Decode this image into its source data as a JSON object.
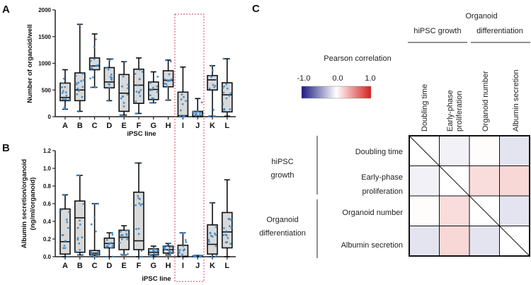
{
  "chart_data": [
    {
      "panel": "A",
      "type": "box",
      "xlabel": "iPSC line",
      "ylabel": "Number of organoid/well",
      "ylim": [
        0,
        2000
      ],
      "yticks": [
        "0",
        "500",
        "1000",
        "1500",
        "2000"
      ],
      "yticks_values": [
        0,
        500,
        1000,
        1500,
        2000
      ],
      "categories": [
        "A",
        "B",
        "C",
        "D",
        "E",
        "F",
        "G",
        "H",
        "I",
        "J",
        "K",
        "L"
      ],
      "boxes": [
        {
          "min": 140,
          "q1": 300,
          "median": 360,
          "q3": 630,
          "max": 880
        },
        {
          "min": 100,
          "q1": 300,
          "median": 500,
          "q3": 820,
          "max": 1730
        },
        {
          "min": 550,
          "q1": 880,
          "median": 950,
          "q3": 1100,
          "max": 1550
        },
        {
          "min": 300,
          "q1": 540,
          "median": 650,
          "q3": 920,
          "max": 1080
        },
        {
          "min": 30,
          "q1": 100,
          "median": 440,
          "q3": 790,
          "max": 1030
        },
        {
          "min": 60,
          "q1": 250,
          "median": 590,
          "q3": 890,
          "max": 1100
        },
        {
          "min": 260,
          "q1": 320,
          "median": 510,
          "q3": 650,
          "max": 840
        },
        {
          "min": 310,
          "q1": 560,
          "median": 680,
          "q3": 860,
          "max": 1060
        },
        {
          "min": 0,
          "q1": 10,
          "median": 20,
          "q3": 460,
          "max": 930
        },
        {
          "min": 0,
          "q1": 0,
          "median": 10,
          "q3": 100,
          "max": 340
        },
        {
          "min": 10,
          "q1": 500,
          "median": 690,
          "q3": 770,
          "max": 955
        },
        {
          "min": 10,
          "q1": 90,
          "median": 410,
          "q3": 635,
          "max": 1085
        }
      ],
      "highlighted_categories": [
        "I",
        "J"
      ]
    },
    {
      "panel": "B",
      "type": "box",
      "xlabel": "iPSC line",
      "ylabel": [
        "Albumin secretion/organoid",
        "(ng/ml/organoid)"
      ],
      "ylim": [
        0,
        1.2
      ],
      "yticks": [
        "0.0",
        "0.2",
        "0.4",
        "0.6",
        "0.8",
        "1.0",
        "1.2"
      ],
      "yticks_values": [
        0,
        0.2,
        0.4,
        0.6,
        0.8,
        1.0,
        1.2
      ],
      "categories": [
        "A",
        "B",
        "C",
        "D",
        "E",
        "F",
        "G",
        "H",
        "I",
        "J",
        "K",
        "L"
      ],
      "boxes": [
        {
          "min": 0.0,
          "q1": 0.03,
          "median": 0.17,
          "q3": 0.54,
          "max": 0.7
        },
        {
          "min": 0.02,
          "q1": 0.05,
          "median": 0.44,
          "q3": 0.63,
          "max": 0.92
        },
        {
          "min": 0.0,
          "q1": 0.02,
          "median": 0.04,
          "q3": 0.07,
          "max": 0.6
        },
        {
          "min": 0.0,
          "q1": 0.1,
          "median": 0.15,
          "q3": 0.21,
          "max": 0.27
        },
        {
          "min": 0.02,
          "q1": 0.08,
          "median": 0.22,
          "q3": 0.3,
          "max": 0.35
        },
        {
          "min": 0.0,
          "q1": 0.08,
          "median": 0.18,
          "q3": 0.73,
          "max": 1.06
        },
        {
          "min": 0.0,
          "q1": 0.02,
          "median": 0.05,
          "q3": 0.09,
          "max": 0.12
        },
        {
          "min": 0.02,
          "q1": 0.04,
          "median": 0.08,
          "q3": 0.12,
          "max": 0.15
        },
        {
          "min": 0.0,
          "q1": 0.0,
          "median": 0.005,
          "q3": 0.13,
          "max": 0.27
        },
        {
          "min": 0.0,
          "q1": 0.0,
          "median": 0.005,
          "q3": 0.01,
          "max": 0.015
        },
        {
          "min": 0.0,
          "q1": 0.03,
          "median": 0.14,
          "q3": 0.36,
          "max": 0.61
        },
        {
          "min": 0.0,
          "q1": 0.1,
          "median": 0.28,
          "q3": 0.5,
          "max": 0.87
        }
      ],
      "highlighted_categories": [
        "I",
        "J"
      ]
    },
    {
      "panel": "C",
      "type": "heatmap",
      "legend_title": "Pearson correlation",
      "legend_ticks": [
        "-1.0",
        "0.0",
        "1.0"
      ],
      "colorscale": [
        "#1a1a80",
        "#ffffff",
        "#d81e1e"
      ],
      "column_groups": [
        {
          "label": "hiPSC growth"
        },
        {
          "label": [
            "Organoid",
            "differentiation"
          ]
        }
      ],
      "row_groups": [
        {
          "label": [
            "hiPSC",
            "growth"
          ]
        },
        {
          "label": [
            "Organoid",
            "differentiation"
          ]
        }
      ],
      "columns": [
        [
          "Doubling time"
        ],
        [
          "Early-phase",
          "proliferation"
        ],
        [
          "Organoid number"
        ],
        [
          "Albumin secretion"
        ]
      ],
      "rows": [
        [
          "Doubling time"
        ],
        [
          "Early-phase",
          "proliferation"
        ],
        [
          "Organoid number"
        ],
        [
          "Albumin secretion"
        ]
      ],
      "values": [
        [
          null,
          -0.1,
          0.02,
          -0.2
        ],
        [
          -0.1,
          null,
          0.25,
          0.3
        ],
        [
          0.02,
          0.25,
          null,
          -0.2
        ],
        [
          -0.2,
          0.3,
          -0.2,
          null
        ]
      ]
    }
  ],
  "colors": {
    "box_fill": "#d9d9d9",
    "point": "#3a86c8",
    "highlight_box": "#e0405a"
  }
}
